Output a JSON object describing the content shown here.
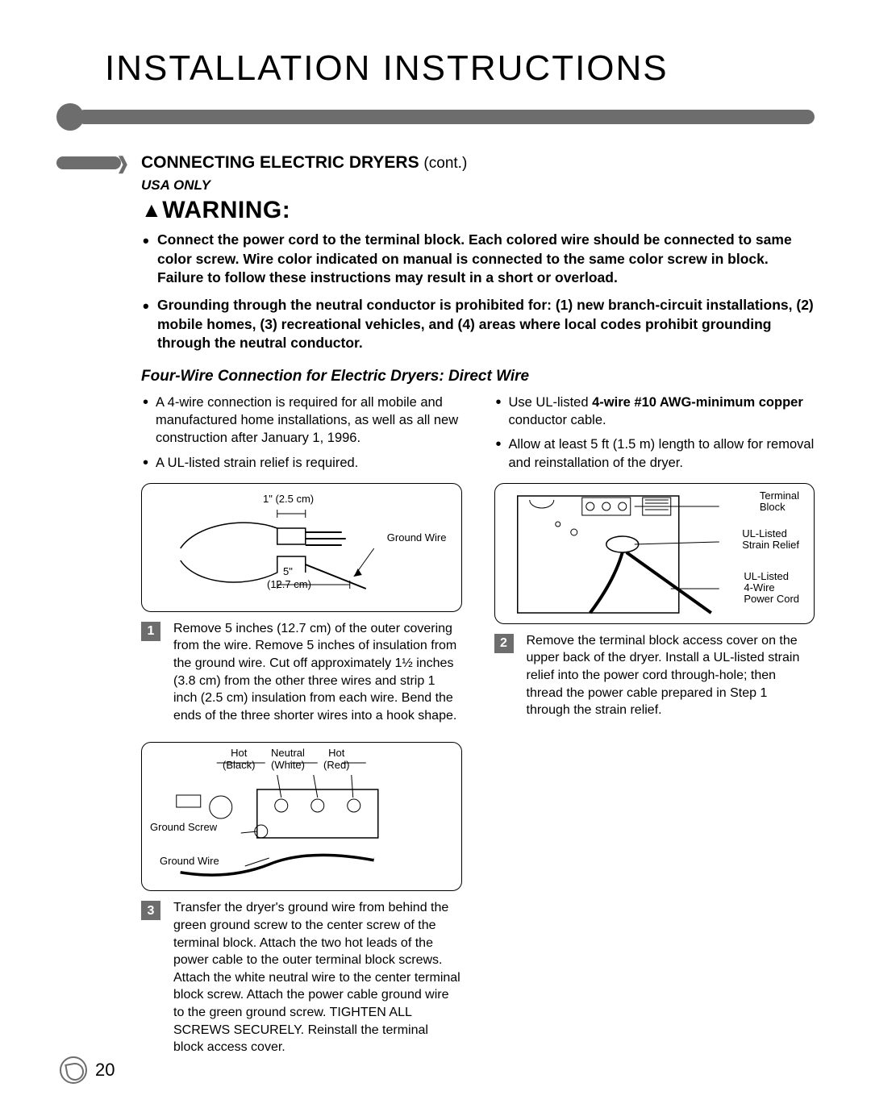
{
  "title": "INSTALLATION INSTRUCTIONS",
  "section": {
    "heading": "CONNECTING ELECTRIC DRYERS",
    "cont": "(cont.)"
  },
  "region_label": "USA ONLY",
  "warning": {
    "symbol": "▲",
    "word": "WARNING:"
  },
  "warning_items": [
    "Connect the power cord to the terminal block. Each colored wire should be connected to same color screw. Wire color indicated on manual is connected to the same color screw in block. Failure to follow these instructions may result in a short or overload.",
    "Grounding through the neutral conductor is prohibited for: (1) new branch-circuit installations, (2) mobile homes, (3) recreational vehicles, and (4) areas where local codes prohibit grounding through the neutral conductor."
  ],
  "sub_heading": "Four-Wire Connection for Electric Dryers: Direct Wire",
  "left_bullets": [
    "A 4-wire connection is required for all mobile and manufactured home installations, as well as all new construction after January 1, 1996.",
    "A UL-listed strain relief is required."
  ],
  "right_bullets_html": [
    "Use UL-listed <span class='b'>4-wire #10 AWG-minimum copper</span> conductor cable.",
    "Allow at least 5 ft (1.5 m) length to allow for removal and reinstallation of the dryer."
  ],
  "diagram1": {
    "top_dim": "1\" (2.5 cm)",
    "bottom_dim": "5\"",
    "bottom_dim2": "(12.7 cm)",
    "ground_wire": "Ground Wire"
  },
  "step1": {
    "num": "1",
    "text": "Remove 5 inches (12.7 cm) of the outer covering from the wire. Remove 5 inches of insulation from the ground wire. Cut off approximately 1½ inches (3.8 cm) from the other three wires and strip 1 inch (2.5 cm) insulation from each wire. Bend the ends of the three shorter wires into a hook shape."
  },
  "diagram2": {
    "terminal_block": "Terminal\nBlock",
    "strain_relief": "UL-Listed\nStrain Relief",
    "power_cord": "UL-Listed\n4-Wire\nPower Cord"
  },
  "step2": {
    "num": "2",
    "text": "Remove the terminal block access cover on the upper back of the dryer. Install a UL-listed strain relief into the power cord through-hole; then thread the power cable prepared in Step 1 through the strain relief."
  },
  "diagram3": {
    "hot_black": "Hot\n(Black)",
    "neutral_white": "Neutral\n(White)",
    "hot_red": "Hot\n(Red)",
    "ground_screw": "Ground Screw",
    "ground_wire": "Ground Wire"
  },
  "step3": {
    "num": "3",
    "text": "Transfer the dryer's ground wire from behind the green ground screw to the center screw of the terminal block. Attach the two hot leads of the power cable to the outer terminal block screws. Attach the white neutral wire to the center terminal block screw. Attach the power cable ground wire to the green ground screw. TIGHTEN ALL SCREWS SECURELY. Reinstall the terminal block access cover."
  },
  "page_number": "20",
  "colors": {
    "accent": "#6d6d6d",
    "text": "#000000",
    "bg": "#ffffff"
  }
}
